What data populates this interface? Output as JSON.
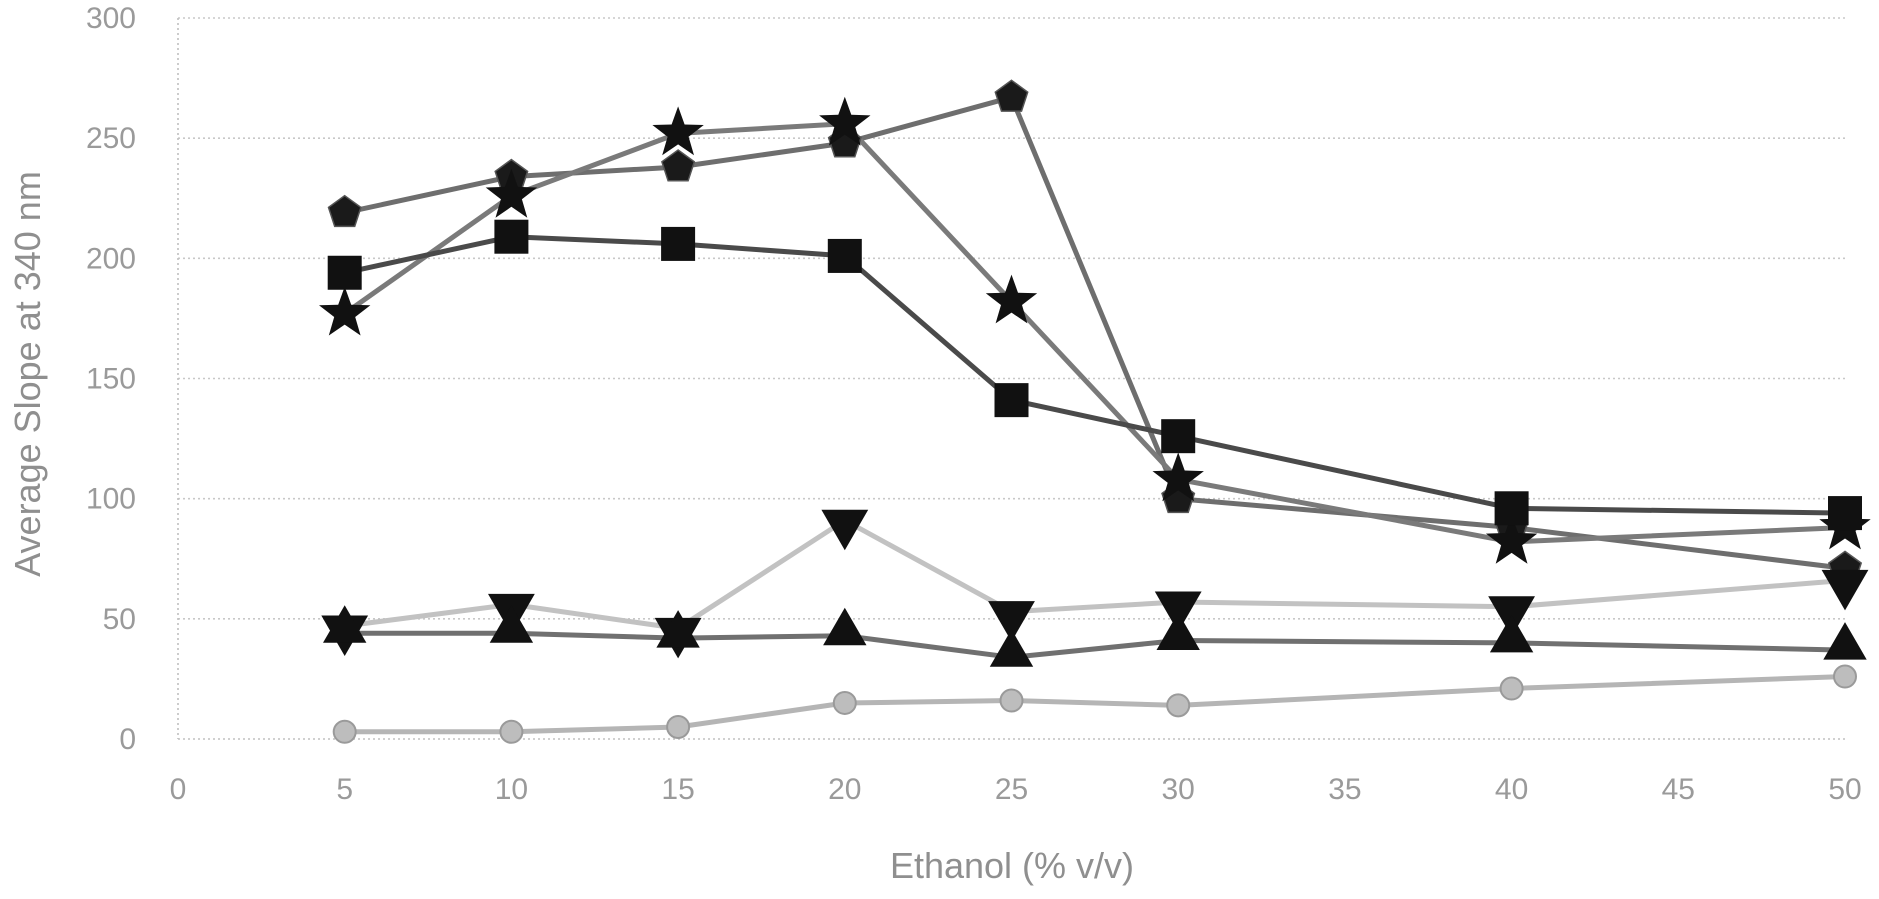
{
  "chart_data": {
    "type": "line",
    "title": "",
    "xlabel": "Ethanol (% v/v)",
    "ylabel": "Average Slope at 340 nm",
    "xlim": [
      0,
      50
    ],
    "ylim": [
      0,
      300
    ],
    "xticks": [
      0,
      5,
      10,
      15,
      20,
      25,
      30,
      35,
      40,
      45,
      50
    ],
    "yticks": [
      0,
      50,
      100,
      150,
      200,
      250,
      300
    ],
    "grid": true,
    "legend": "none",
    "series": [
      {
        "name": "pentagon",
        "marker": "pentagon",
        "color": "#6e6e6e",
        "x": [
          5,
          10,
          15,
          20,
          25,
          30,
          40,
          50
        ],
        "values": [
          219,
          234,
          238,
          248,
          267,
          100,
          88,
          71
        ]
      },
      {
        "name": "star",
        "marker": "star",
        "color": "#7a7a7a",
        "x": [
          5,
          10,
          15,
          20,
          25,
          30,
          40,
          50
        ],
        "values": [
          177,
          226,
          252,
          256,
          182,
          108,
          82,
          88
        ]
      },
      {
        "name": "square",
        "marker": "square",
        "color": "#4a4a4a",
        "x": [
          5,
          10,
          15,
          20,
          25,
          30,
          40,
          50
        ],
        "values": [
          194,
          209,
          206,
          201,
          141,
          126,
          96,
          94
        ]
      },
      {
        "name": "down-triangle",
        "marker": "down-triangle",
        "color": "#c2c2c2",
        "x": [
          5,
          10,
          15,
          20,
          25,
          30,
          40,
          50
        ],
        "values": [
          47,
          56,
          46,
          91,
          53,
          57,
          55,
          66
        ]
      },
      {
        "name": "triangle",
        "marker": "triangle",
        "color": "#707070",
        "x": [
          5,
          10,
          15,
          20,
          25,
          30,
          40,
          50
        ],
        "values": [
          44,
          44,
          42,
          43,
          34,
          41,
          40,
          37
        ]
      },
      {
        "name": "diamond",
        "marker": "circle",
        "color": "#b5b5b5",
        "x": [
          5,
          10,
          15,
          20,
          25,
          30,
          40,
          50
        ],
        "values": [
          3,
          3,
          5,
          15,
          16,
          14,
          21,
          26
        ]
      }
    ]
  }
}
